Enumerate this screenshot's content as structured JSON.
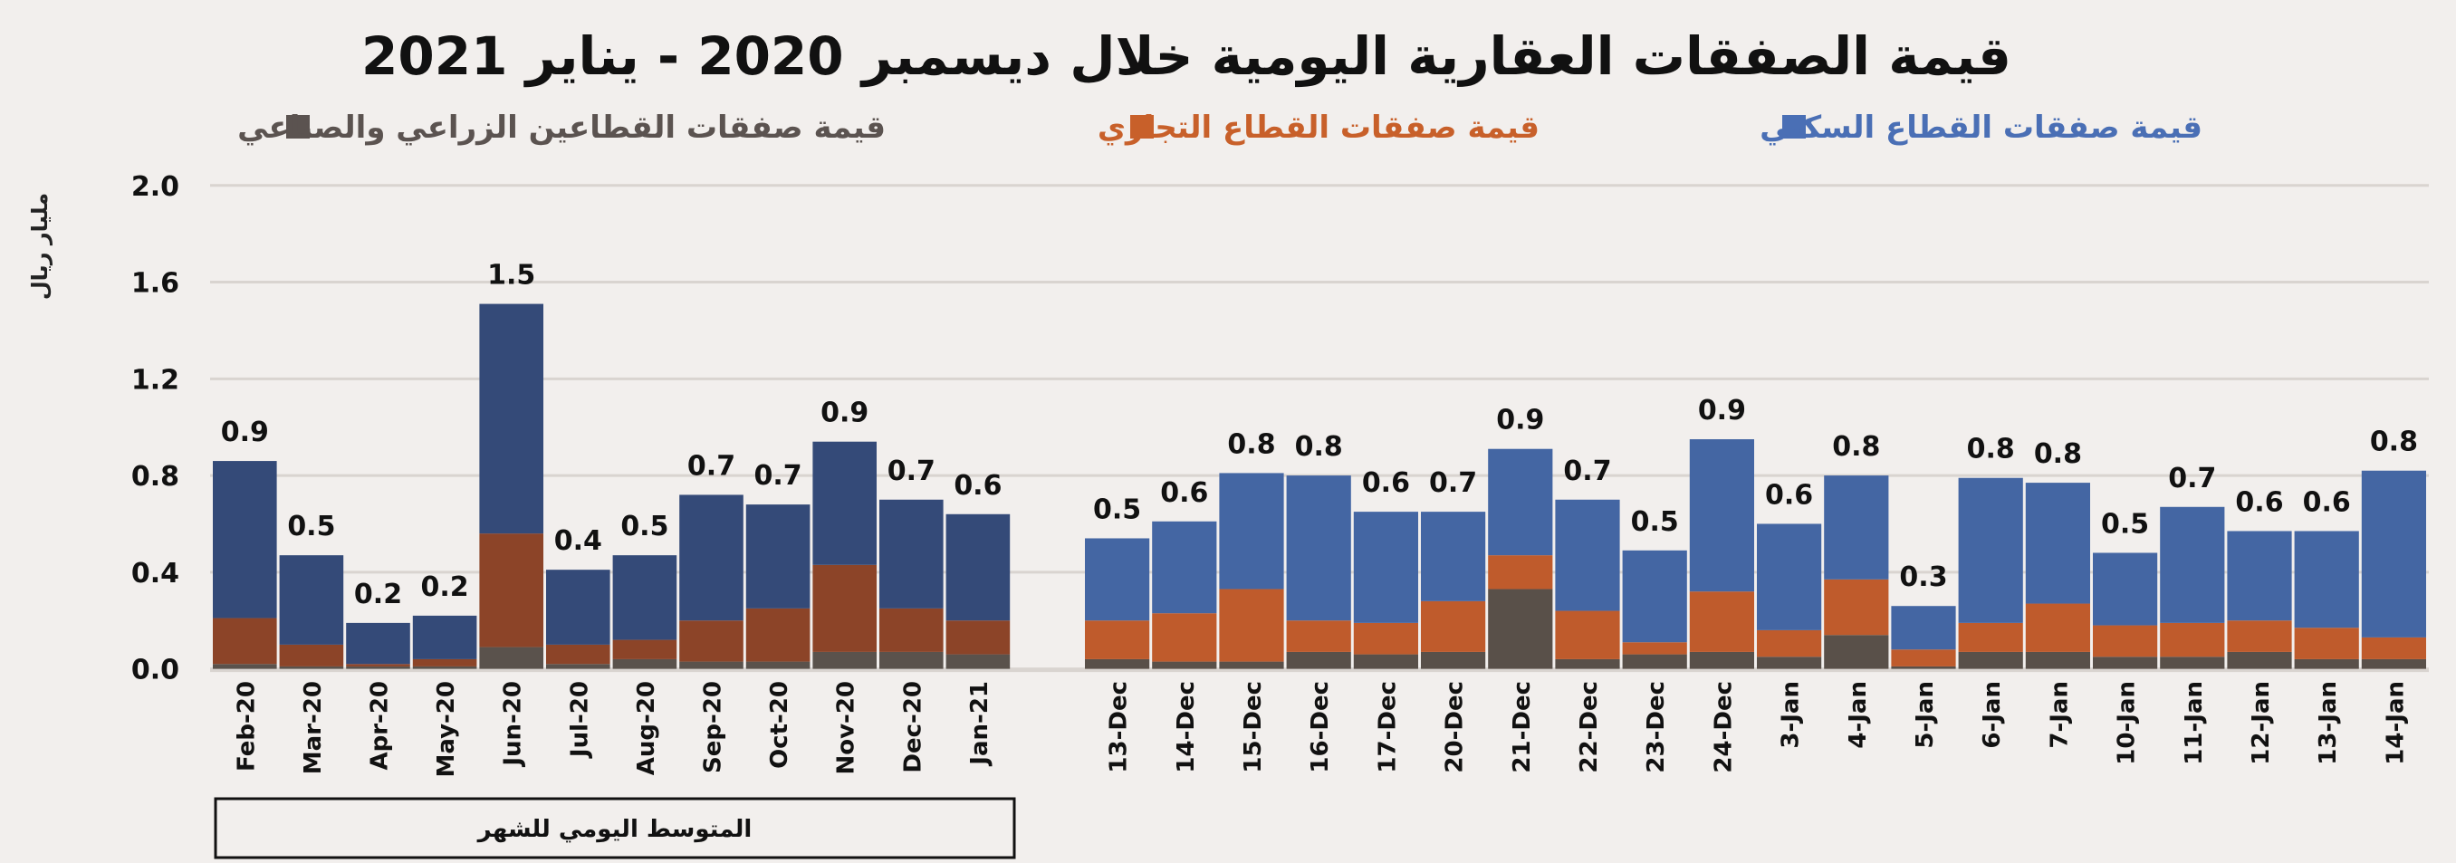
{
  "chart_data": {
    "type": "bar",
    "stacked": true,
    "title": "قيمة الصفقات العقارية اليومية خلال ديسمبر 2020 - يناير 2021",
    "ylabel": "مليار ريال",
    "ylim": [
      0,
      2.0
    ],
    "yticks": [
      "0.0",
      "0.4",
      "0.8",
      "1.2",
      "1.6",
      "2.0"
    ],
    "grid": true,
    "legend_placement": "top",
    "legend": [
      {
        "name": "قيمة صفقات القطاع السكني",
        "color": "#4a6fb5"
      },
      {
        "name": "قيمة صفقات القطاع التجاري",
        "color": "#c8602a"
      },
      {
        "name": "قيمة صفقات القطاعين الزراعي والصناعي",
        "color": "#5b5350"
      }
    ],
    "groups": [
      {
        "caption": "المتوسط اليومي للشهر",
        "colors": {
          "residential": "#344a78",
          "commercial": "#8c4428",
          "agri_industrial": "#5a524c"
        },
        "categories": [
          "Feb-20",
          "Mar-20",
          "Apr-20",
          "May-20",
          "Jun-20",
          "Jul-20",
          "Aug-20",
          "Sep-20",
          "Oct-20",
          "Nov-20",
          "Dec-20",
          "Jan-21"
        ],
        "series": [
          {
            "name": "قيمة صفقات القطاع السكني",
            "key": "residential",
            "values": [
              0.65,
              0.37,
              0.17,
              0.18,
              0.95,
              0.31,
              0.35,
              0.52,
              0.43,
              0.51,
              0.45,
              0.44
            ]
          },
          {
            "name": "قيمة صفقات القطاع التجاري",
            "key": "commercial",
            "values": [
              0.19,
              0.09,
              0.01,
              0.03,
              0.47,
              0.08,
              0.08,
              0.17,
              0.22,
              0.36,
              0.18,
              0.14
            ]
          },
          {
            "name": "قيمة صفقات القطاعين الزراعي والصناعي",
            "key": "agri_industrial",
            "values": [
              0.02,
              0.01,
              0.01,
              0.01,
              0.09,
              0.02,
              0.04,
              0.03,
              0.03,
              0.07,
              0.07,
              0.06
            ]
          }
        ],
        "labels": [
          "0.9",
          "0.5",
          "0.2",
          "0.2",
          "1.5",
          "0.4",
          "0.5",
          "0.7",
          "0.7",
          "0.9",
          "0.7",
          "0.6"
        ]
      },
      {
        "caption": "",
        "colors": {
          "residential": "#4466a3",
          "commercial": "#bf5b2c",
          "agri_industrial": "#595049"
        },
        "categories": [
          "13-Dec",
          "14-Dec",
          "15-Dec",
          "16-Dec",
          "17-Dec",
          "20-Dec",
          "21-Dec",
          "22-Dec",
          "23-Dec",
          "24-Dec",
          "3-Jan",
          "4-Jan",
          "5-Jan",
          "6-Jan",
          "7-Jan",
          "10-Jan",
          "11-Jan",
          "12-Jan",
          "13-Jan",
          "14-Jan"
        ],
        "series": [
          {
            "name": "قيمة صفقات القطاع السكني",
            "key": "residential",
            "values": [
              0.34,
              0.38,
              0.48,
              0.6,
              0.46,
              0.37,
              0.44,
              0.46,
              0.38,
              0.63,
              0.44,
              0.43,
              0.18,
              0.6,
              0.5,
              0.3,
              0.48,
              0.37,
              0.4,
              0.69
            ]
          },
          {
            "name": "قيمة صفقات القطاع التجاري",
            "key": "commercial",
            "values": [
              0.16,
              0.2,
              0.3,
              0.13,
              0.13,
              0.21,
              0.14,
              0.2,
              0.05,
              0.25,
              0.11,
              0.23,
              0.07,
              0.12,
              0.2,
              0.13,
              0.14,
              0.13,
              0.13,
              0.09
            ]
          },
          {
            "name": "قيمة صفقات القطاعين الزراعي والصناعي",
            "key": "agri_industrial",
            "values": [
              0.04,
              0.03,
              0.03,
              0.07,
              0.06,
              0.07,
              0.33,
              0.04,
              0.06,
              0.07,
              0.05,
              0.14,
              0.01,
              0.07,
              0.07,
              0.05,
              0.05,
              0.07,
              0.04,
              0.04
            ]
          }
        ],
        "labels": [
          "0.5",
          "0.6",
          "0.8",
          "0.8",
          "0.6",
          "0.7",
          "0.9",
          "0.7",
          "0.5",
          "0.9",
          "0.6",
          "0.8",
          "0.3",
          "0.8",
          "0.8",
          "0.5",
          "0.7",
          "0.6",
          "0.6",
          "0.8"
        ]
      }
    ]
  }
}
